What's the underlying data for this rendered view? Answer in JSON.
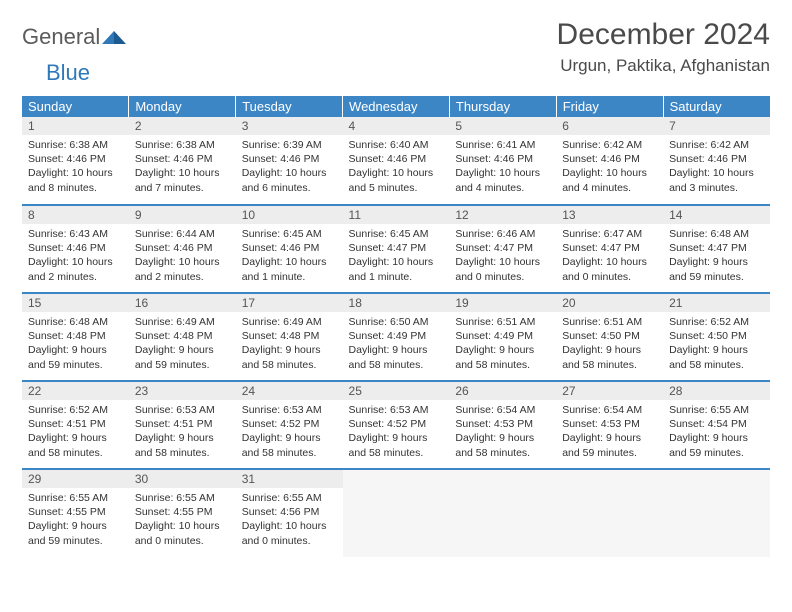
{
  "brand": {
    "word1": "General",
    "word2": "Blue"
  },
  "title": "December 2024",
  "location": "Urgun, Paktika, Afghanistan",
  "colors": {
    "header_bg": "#3d86c6",
    "header_text": "#ffffff",
    "daynum_bg": "#ededed",
    "rule": "#3d86c6",
    "brand_gray": "#5b5b5b",
    "brand_blue": "#2f79b9"
  },
  "weekdays": [
    "Sunday",
    "Monday",
    "Tuesday",
    "Wednesday",
    "Thursday",
    "Friday",
    "Saturday"
  ],
  "days": [
    {
      "n": "1",
      "sr": "6:38 AM",
      "ss": "4:46 PM",
      "dl": "10 hours and 8 minutes."
    },
    {
      "n": "2",
      "sr": "6:38 AM",
      "ss": "4:46 PM",
      "dl": "10 hours and 7 minutes."
    },
    {
      "n": "3",
      "sr": "6:39 AM",
      "ss": "4:46 PM",
      "dl": "10 hours and 6 minutes."
    },
    {
      "n": "4",
      "sr": "6:40 AM",
      "ss": "4:46 PM",
      "dl": "10 hours and 5 minutes."
    },
    {
      "n": "5",
      "sr": "6:41 AM",
      "ss": "4:46 PM",
      "dl": "10 hours and 4 minutes."
    },
    {
      "n": "6",
      "sr": "6:42 AM",
      "ss": "4:46 PM",
      "dl": "10 hours and 4 minutes."
    },
    {
      "n": "7",
      "sr": "6:42 AM",
      "ss": "4:46 PM",
      "dl": "10 hours and 3 minutes."
    },
    {
      "n": "8",
      "sr": "6:43 AM",
      "ss": "4:46 PM",
      "dl": "10 hours and 2 minutes."
    },
    {
      "n": "9",
      "sr": "6:44 AM",
      "ss": "4:46 PM",
      "dl": "10 hours and 2 minutes."
    },
    {
      "n": "10",
      "sr": "6:45 AM",
      "ss": "4:46 PM",
      "dl": "10 hours and 1 minute."
    },
    {
      "n": "11",
      "sr": "6:45 AM",
      "ss": "4:47 PM",
      "dl": "10 hours and 1 minute."
    },
    {
      "n": "12",
      "sr": "6:46 AM",
      "ss": "4:47 PM",
      "dl": "10 hours and 0 minutes."
    },
    {
      "n": "13",
      "sr": "6:47 AM",
      "ss": "4:47 PM",
      "dl": "10 hours and 0 minutes."
    },
    {
      "n": "14",
      "sr": "6:48 AM",
      "ss": "4:47 PM",
      "dl": "9 hours and 59 minutes."
    },
    {
      "n": "15",
      "sr": "6:48 AM",
      "ss": "4:48 PM",
      "dl": "9 hours and 59 minutes."
    },
    {
      "n": "16",
      "sr": "6:49 AM",
      "ss": "4:48 PM",
      "dl": "9 hours and 59 minutes."
    },
    {
      "n": "17",
      "sr": "6:49 AM",
      "ss": "4:48 PM",
      "dl": "9 hours and 58 minutes."
    },
    {
      "n": "18",
      "sr": "6:50 AM",
      "ss": "4:49 PM",
      "dl": "9 hours and 58 minutes."
    },
    {
      "n": "19",
      "sr": "6:51 AM",
      "ss": "4:49 PM",
      "dl": "9 hours and 58 minutes."
    },
    {
      "n": "20",
      "sr": "6:51 AM",
      "ss": "4:50 PM",
      "dl": "9 hours and 58 minutes."
    },
    {
      "n": "21",
      "sr": "6:52 AM",
      "ss": "4:50 PM",
      "dl": "9 hours and 58 minutes."
    },
    {
      "n": "22",
      "sr": "6:52 AM",
      "ss": "4:51 PM",
      "dl": "9 hours and 58 minutes."
    },
    {
      "n": "23",
      "sr": "6:53 AM",
      "ss": "4:51 PM",
      "dl": "9 hours and 58 minutes."
    },
    {
      "n": "24",
      "sr": "6:53 AM",
      "ss": "4:52 PM",
      "dl": "9 hours and 58 minutes."
    },
    {
      "n": "25",
      "sr": "6:53 AM",
      "ss": "4:52 PM",
      "dl": "9 hours and 58 minutes."
    },
    {
      "n": "26",
      "sr": "6:54 AM",
      "ss": "4:53 PM",
      "dl": "9 hours and 58 minutes."
    },
    {
      "n": "27",
      "sr": "6:54 AM",
      "ss": "4:53 PM",
      "dl": "9 hours and 59 minutes."
    },
    {
      "n": "28",
      "sr": "6:55 AM",
      "ss": "4:54 PM",
      "dl": "9 hours and 59 minutes."
    },
    {
      "n": "29",
      "sr": "6:55 AM",
      "ss": "4:55 PM",
      "dl": "9 hours and 59 minutes."
    },
    {
      "n": "30",
      "sr": "6:55 AM",
      "ss": "4:55 PM",
      "dl": "10 hours and 0 minutes."
    },
    {
      "n": "31",
      "sr": "6:55 AM",
      "ss": "4:56 PM",
      "dl": "10 hours and 0 minutes."
    }
  ],
  "labels": {
    "sunrise": "Sunrise:",
    "sunset": "Sunset:",
    "daylight": "Daylight:"
  }
}
